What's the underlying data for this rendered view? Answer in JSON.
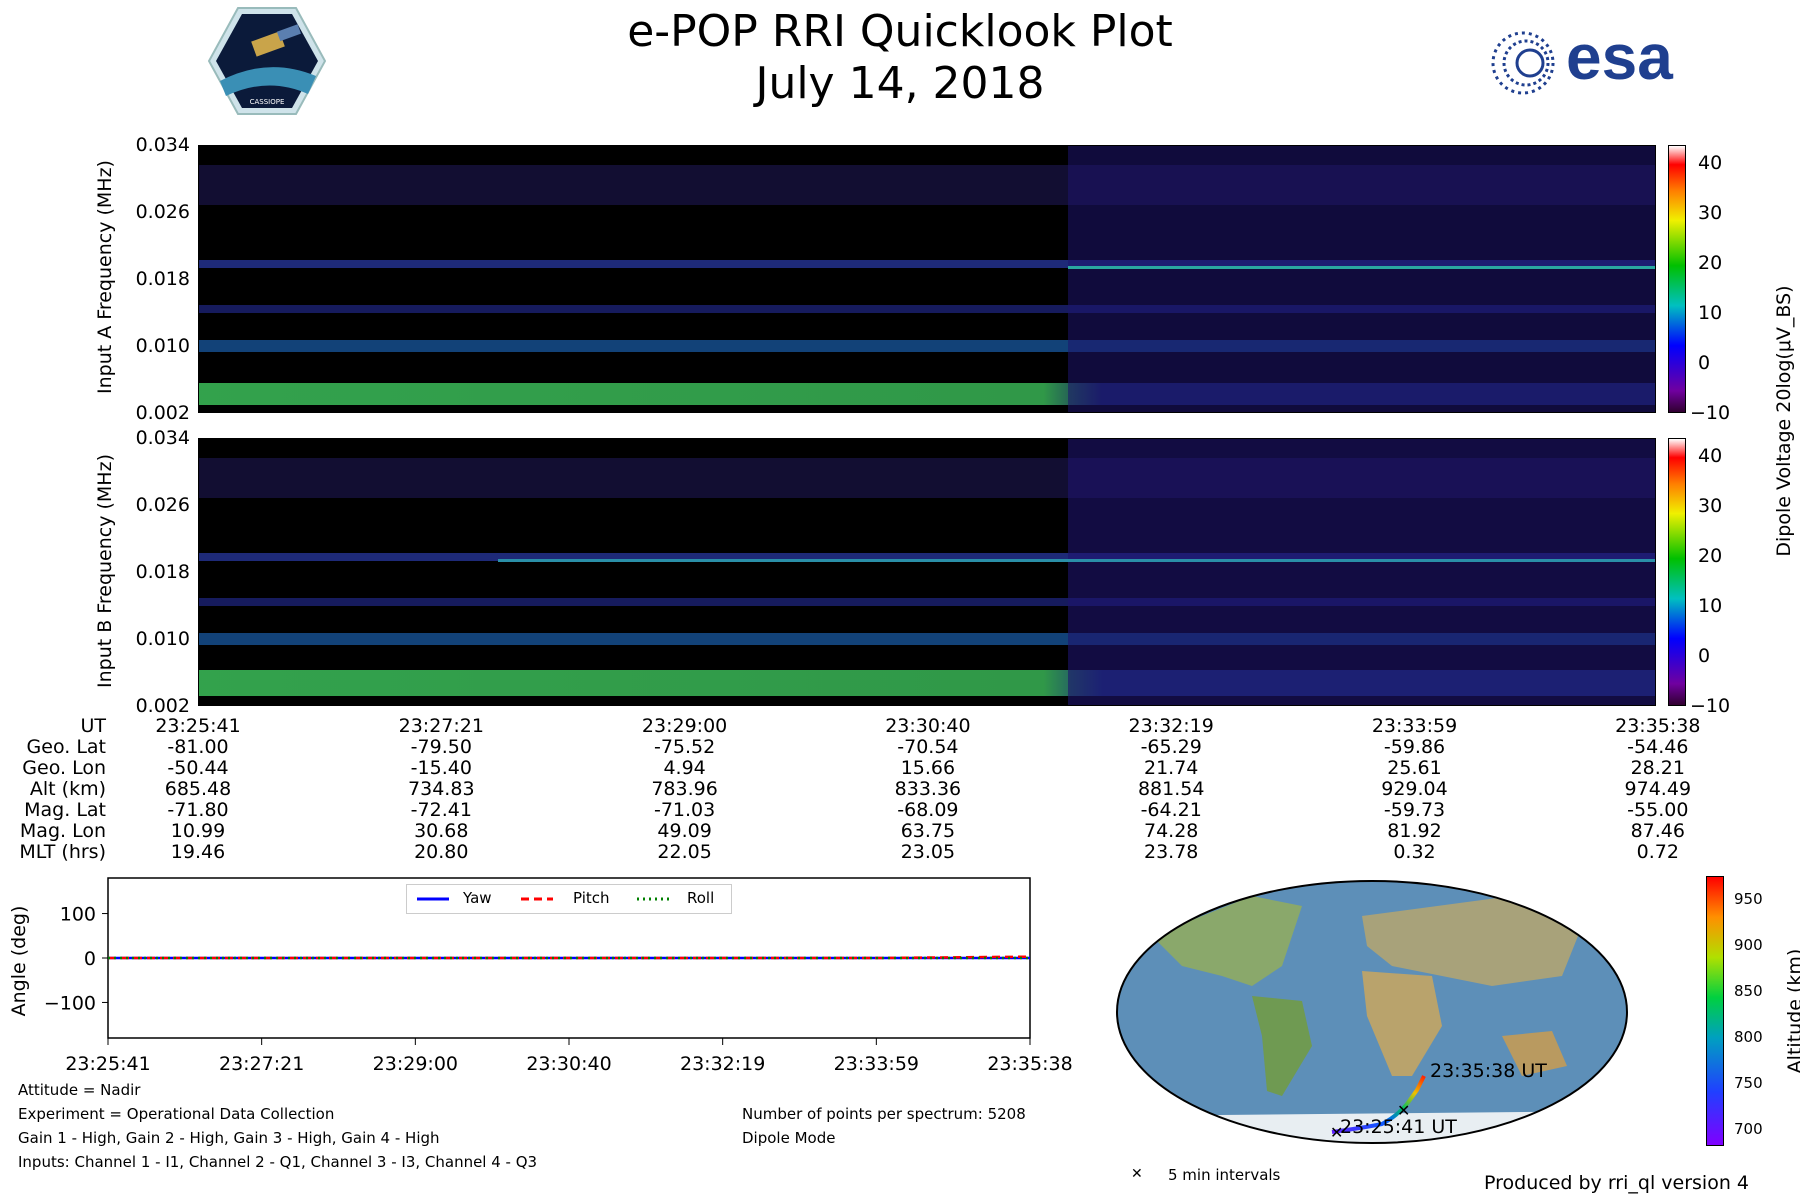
{
  "header": {
    "title": "e-POP RRI Quicklook Plot",
    "date": "July 14, 2018",
    "left_logo_text": "CASSIOPE",
    "right_logo_text": "esa"
  },
  "colors": {
    "yaw": "#0000ff",
    "pitch": "#ff0000",
    "roll": "#008000",
    "spectrogram_background": "#000000"
  },
  "spectrogram": {
    "a_ylabel": "Input A Frequency (MHz)",
    "b_ylabel": "Input B Frequency (MHz)",
    "yticks": [
      "0.034",
      "0.026",
      "0.018",
      "0.010",
      "0.002"
    ],
    "colorbar_label": "Dipole Voltage 20log(μV_BS)",
    "colorbar_ticks": [
      "40",
      "30",
      "20",
      "10",
      "0",
      "−10"
    ]
  },
  "info_table": {
    "labels": [
      "UT",
      "Geo. Lat",
      "Geo. Lon",
      "Alt (km)",
      "Mag. Lat",
      "Mag. Lon",
      "MLT (hrs)"
    ],
    "columns": [
      [
        "23:25:41",
        "-81.00",
        "-50.44",
        "685.48",
        "-71.80",
        "10.99",
        "19.46"
      ],
      [
        "23:27:21",
        "-79.50",
        "-15.40",
        "734.83",
        "-72.41",
        "30.68",
        "20.80"
      ],
      [
        "23:29:00",
        "-75.52",
        "4.94",
        "783.96",
        "-71.03",
        "49.09",
        "22.05"
      ],
      [
        "23:30:40",
        "-70.54",
        "15.66",
        "833.36",
        "-68.09",
        "63.75",
        "23.05"
      ],
      [
        "23:32:19",
        "-65.29",
        "21.74",
        "881.54",
        "-64.21",
        "74.28",
        "23.78"
      ],
      [
        "23:33:59",
        "-59.86",
        "25.61",
        "929.04",
        "-59.73",
        "81.92",
        "0.32"
      ],
      [
        "23:35:38",
        "-54.46",
        "28.21",
        "974.49",
        "-55.00",
        "87.46",
        "0.72"
      ]
    ]
  },
  "chart_data": [
    {
      "type": "line",
      "title": "",
      "xlabel": "",
      "ylabel": "Angle (deg)",
      "x": [
        "23:25:41",
        "23:27:21",
        "23:29:00",
        "23:30:40",
        "23:32:19",
        "23:33:59",
        "23:35:38"
      ],
      "ylim": [
        -180,
        180
      ],
      "yticks": [
        "100",
        "0",
        "−100"
      ],
      "legend_position": "top-center",
      "series": [
        {
          "name": "Yaw",
          "values": [
            0,
            0,
            0,
            0,
            0,
            0,
            0
          ]
        },
        {
          "name": "Pitch",
          "values": [
            0,
            0,
            0,
            0,
            0,
            0,
            3
          ]
        },
        {
          "name": "Roll",
          "values": [
            0,
            0,
            0,
            0,
            0,
            0,
            0
          ]
        }
      ]
    }
  ],
  "map": {
    "start_label": "23:25:41 UT",
    "end_label": "23:35:38 UT",
    "marker_note": "5 min intervals",
    "colorbar_label": "Altitude (km)",
    "colorbar_ticks": [
      "950",
      "900",
      "850",
      "800",
      "750",
      "700"
    ]
  },
  "notes": {
    "attitude": "Attitude = Nadir",
    "experiment": "Experiment = Operational Data Collection",
    "gains": "Gain 1 - High, Gain 2 - High, Gain 3 - High, Gain 4 - High",
    "inputs": "Inputs: Channel 1 - I1, Channel 2 - Q1, Channel 3 - I3, Channel 4 - Q3",
    "points": "Number of points per spectrum: 5208",
    "mode": "Dipole Mode",
    "produced_by": "Produced by rri_ql version 4"
  }
}
